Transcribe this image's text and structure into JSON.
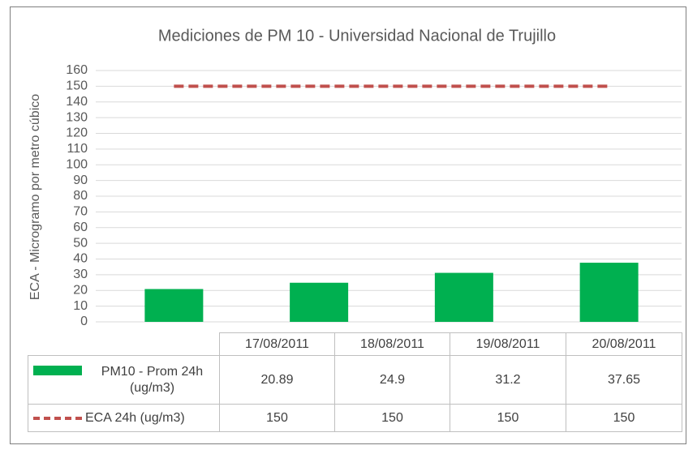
{
  "chart_data": {
    "type": "bar",
    "title": "Mediciones de PM 10 - Universidad Nacional de Trujillo",
    "y_label": "ECA - Microgramo por metro cúbico",
    "categories": [
      "17/08/2011",
      "18/08/2011",
      "19/08/2011",
      "20/08/2011"
    ],
    "series": [
      {
        "name": "PM10 - Prom 24h (ug/m3)",
        "type": "bar",
        "color": "#00b050",
        "values": [
          20.89,
          24.9,
          31.2,
          37.65
        ]
      },
      {
        "name": "ECA 24h (ug/m3)",
        "type": "line",
        "color": "#c0504d",
        "values": [
          150,
          150,
          150,
          150
        ]
      }
    ],
    "ylim": [
      0,
      160
    ],
    "yticks": [
      0,
      10,
      20,
      30,
      40,
      50,
      60,
      70,
      80,
      90,
      100,
      110,
      120,
      130,
      140,
      150,
      160
    ],
    "grid": true,
    "data_table": true
  }
}
